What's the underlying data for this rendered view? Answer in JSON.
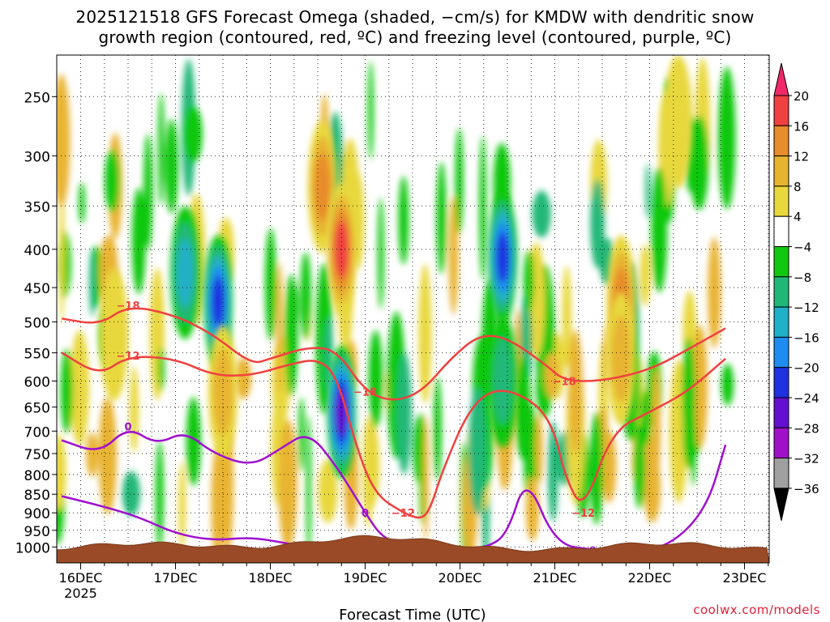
{
  "chart_data": {
    "type": "heatmap",
    "title_line1": "2025121518 GFS Forecast Omega (shaded, −cm/s) for KMDW with dendritic snow",
    "title_line2": "growth region (contoured, red, ºC) and freezing level (contoured, purple, ºC)",
    "xlabel": "Forecast Time (UTC)",
    "ylabel": "",
    "x_ticks": [
      "16DEC",
      "17DEC",
      "18DEC",
      "19DEC",
      "20DEC",
      "21DEC",
      "22DEC",
      "23DEC"
    ],
    "x_year": "2025",
    "y_ticks": [
      250,
      300,
      350,
      400,
      450,
      500,
      550,
      600,
      650,
      700,
      750,
      800,
      850,
      900,
      950,
      1000
    ],
    "grid": true,
    "colorbar": {
      "levels": [
        "20",
        "16",
        "12",
        "8",
        "4",
        "−4",
        "−8",
        "−12",
        "−16",
        "−20",
        "−24",
        "−28",
        "−32",
        "−36"
      ],
      "colors": [
        "#f02868",
        "#f04040",
        "#e88c2c",
        "#e8b430",
        "#e8d83c",
        "#ffffff",
        "#10c810",
        "#20b878",
        "#20b0c8",
        "#1e8cf0",
        "#1e32e0",
        "#6410d0",
        "#a010c8",
        "#a0a0a0",
        "#000000"
      ]
    },
    "omega_features": [
      {
        "day": 0.35,
        "p": 520,
        "value": 6
      },
      {
        "day": 1.1,
        "p": 430,
        "value": -14
      },
      {
        "day": 1.45,
        "p": 470,
        "value": -22
      },
      {
        "day": 1.5,
        "p": 620,
        "value": 10
      },
      {
        "day": 2.55,
        "p": 330,
        "value": 14
      },
      {
        "day": 2.75,
        "p": 400,
        "value": 20
      },
      {
        "day": 2.75,
        "p": 660,
        "value": -28
      },
      {
        "day": 4.45,
        "p": 410,
        "value": -22
      },
      {
        "day": 4.45,
        "p": 600,
        "value": -12
      },
      {
        "day": 5.7,
        "p": 470,
        "value": 16
      },
      {
        "day": 5.7,
        "p": 560,
        "value": 12
      },
      {
        "day": 6.3,
        "p": 270,
        "value": 8
      }
    ],
    "series": [
      {
        "name": "-18 C",
        "color": "#f04040",
        "label": "−18",
        "x": [
          -0.2,
          0.2,
          0.5,
          1.0,
          1.4,
          1.8,
          2.0,
          2.4,
          2.7,
          3.0,
          3.3,
          3.6,
          3.9,
          4.2,
          4.5,
          4.9,
          5.1,
          5.5,
          6.0,
          6.4,
          6.8
        ],
        "y": [
          495,
          505,
          475,
          490,
          520,
          570,
          560,
          540,
          545,
          620,
          640,
          620,
          560,
          520,
          525,
          570,
          600,
          600,
          580,
          545,
          510
        ]
      },
      {
        "name": "-12 C",
        "color": "#f04040",
        "label": "−12",
        "x": [
          -0.2,
          0.2,
          0.5,
          1.0,
          1.4,
          1.8,
          2.2,
          2.5,
          2.7,
          2.9,
          3.1,
          3.4,
          3.6,
          3.7,
          3.8,
          4.1,
          4.4,
          4.8,
          5.0,
          5.1,
          5.3,
          5.6,
          6.0,
          6.4,
          6.8
        ],
        "y": [
          550,
          590,
          555,
          560,
          590,
          590,
          570,
          560,
          590,
          730,
          850,
          900,
          920,
          880,
          800,
          650,
          610,
          640,
          700,
          800,
          900,
          700,
          660,
          620,
          560
        ]
      },
      {
        "name": "0 C",
        "color": "#a010d0",
        "label": "0",
        "x": [
          -0.2,
          0.2,
          0.5,
          0.8,
          1.1,
          1.4,
          1.8,
          2.1,
          2.4,
          2.7,
          3.0,
          3.2,
          3.6,
          4.0,
          4.3,
          4.5,
          4.7,
          5.0,
          5.4,
          5.8,
          6.2,
          6.6,
          6.8
        ],
        "y": [
          720,
          750,
          690,
          730,
          700,
          750,
          780,
          740,
          700,
          780,
          900,
          980,
          1010,
          1010,
          1000,
          960,
          800,
          990,
          1010,
          1010,
          1000,
          890,
          730
        ]
      },
      {
        "name": "0 C low",
        "color": "#a010d0",
        "label": "",
        "x": [
          -0.2,
          0.2,
          0.6,
          1.0,
          1.4,
          1.8,
          2.2
        ],
        "y": [
          855,
          880,
          910,
          960,
          980,
          970,
          990
        ]
      }
    ]
  },
  "credit": "coolwx.com/models"
}
